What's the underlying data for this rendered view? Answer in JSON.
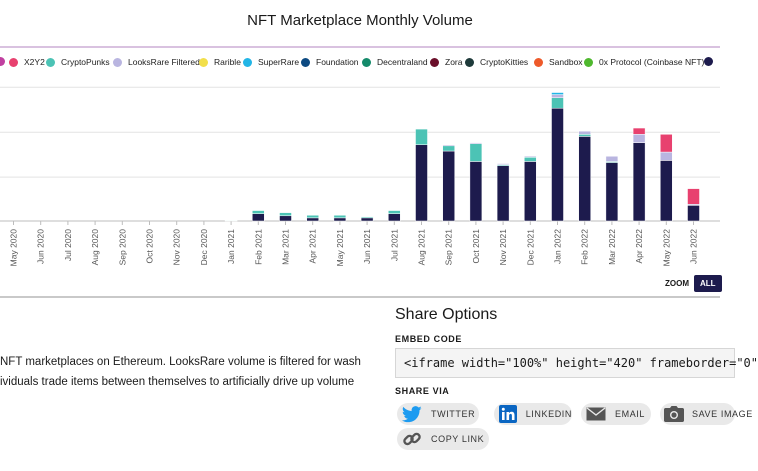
{
  "title": "NFT Marketplace Monthly Volume",
  "legend": [
    {
      "name": "X2Y2",
      "color": "#e8416f"
    },
    {
      "name": "CryptoPunks",
      "color": "#4cc3b5"
    },
    {
      "name": "LooksRare Filtered",
      "color": "#b9b5e0"
    },
    {
      "name": "Rarible",
      "color": "#f2df4b"
    },
    {
      "name": "SuperRare",
      "color": "#22b5e6"
    },
    {
      "name": "Foundation",
      "color": "#0d4a82"
    },
    {
      "name": "Decentraland",
      "color": "#148a6a"
    },
    {
      "name": "Zora",
      "color": "#6b0f2a"
    },
    {
      "name": "CryptoKitties",
      "color": "#1e3a3a"
    },
    {
      "name": "Sandbox",
      "color": "#ee5a2a"
    },
    {
      "name": "0x Protocol (Coinbase NFT)",
      "color": "#4fb82e"
    },
    {
      "name": "",
      "color": "#1d1b4d"
    }
  ],
  "chart_data": {
    "type": "bar",
    "stacked": true,
    "categories": [
      "May 2020",
      "Jun 2020",
      "Jul 2020",
      "Aug 2020",
      "Sep 2020",
      "Oct 2020",
      "Nov 2020",
      "Dec 2020",
      "Jan 2021",
      "Feb 2021",
      "Mar 2021",
      "Apr 2021",
      "May 2021",
      "Jun 2021",
      "Jul 2021",
      "Aug 2021",
      "Sep 2021",
      "Oct 2021",
      "Nov 2021",
      "Dec 2021",
      "Jan 2022",
      "Feb 2022",
      "Mar 2022",
      "Apr 2022",
      "May 2022",
      "Jun 2022"
    ],
    "series": [
      {
        "color": "#1d1b4d",
        "values": [
          0,
          0,
          0,
          0,
          0,
          0,
          0,
          0,
          0,
          7,
          5,
          3,
          3,
          3,
          7,
          73,
          67,
          57,
          53,
          57,
          108,
          81,
          56,
          75,
          58,
          15
        ]
      },
      {
        "color": "#4cc3b5",
        "values": [
          0,
          0,
          0,
          0,
          0,
          0,
          0,
          0,
          0.5,
          3,
          3,
          2.5,
          2.5,
          1,
          3,
          15,
          5,
          17,
          1,
          4,
          10,
          2,
          1,
          0,
          0,
          0
        ]
      },
      {
        "color": "#b9b5e0",
        "values": [
          0,
          0,
          0,
          0,
          0,
          0,
          0,
          0,
          0,
          0,
          0,
          0,
          0,
          0,
          0,
          0,
          1,
          1,
          1,
          1,
          3,
          3,
          5,
          8,
          8,
          1
        ]
      },
      {
        "color": "#e8416f",
        "values": [
          0,
          0,
          0,
          0,
          0,
          0,
          0,
          0,
          0,
          0,
          0,
          0,
          0,
          0,
          0,
          0,
          0,
          0,
          0,
          0,
          0,
          0,
          0,
          6,
          17,
          15
        ]
      },
      {
        "color": "#22b5e6",
        "values": [
          0,
          0,
          0,
          0,
          0,
          0,
          0,
          0,
          0,
          0,
          0,
          0,
          0,
          0,
          0,
          0,
          0,
          0,
          0,
          0,
          2,
          0,
          0,
          0,
          0,
          0
        ]
      }
    ],
    "ylim": [
      0,
      135
    ],
    "grid": true,
    "legend_position": "top"
  },
  "zoom": {
    "label": "ZOOM",
    "all": "ALL"
  },
  "description": {
    "line1": "NFT marketplaces on Ethereum. LooksRare volume is filtered for wash",
    "line2": "ividuals trade items between themselves to artificially drive up volume"
  },
  "share": {
    "title": "Share Options",
    "embed_label": "EMBED CODE",
    "embed_code": "<iframe width=\"100%\" height=\"420\" frameborder=\"0\"",
    "share_via_label": "SHARE VIA",
    "twitter": "TWITTER",
    "linkedin": "LINKEDIN",
    "email": "EMAIL",
    "save": "SAVE IMAGE",
    "copy": "COPY LINK"
  }
}
